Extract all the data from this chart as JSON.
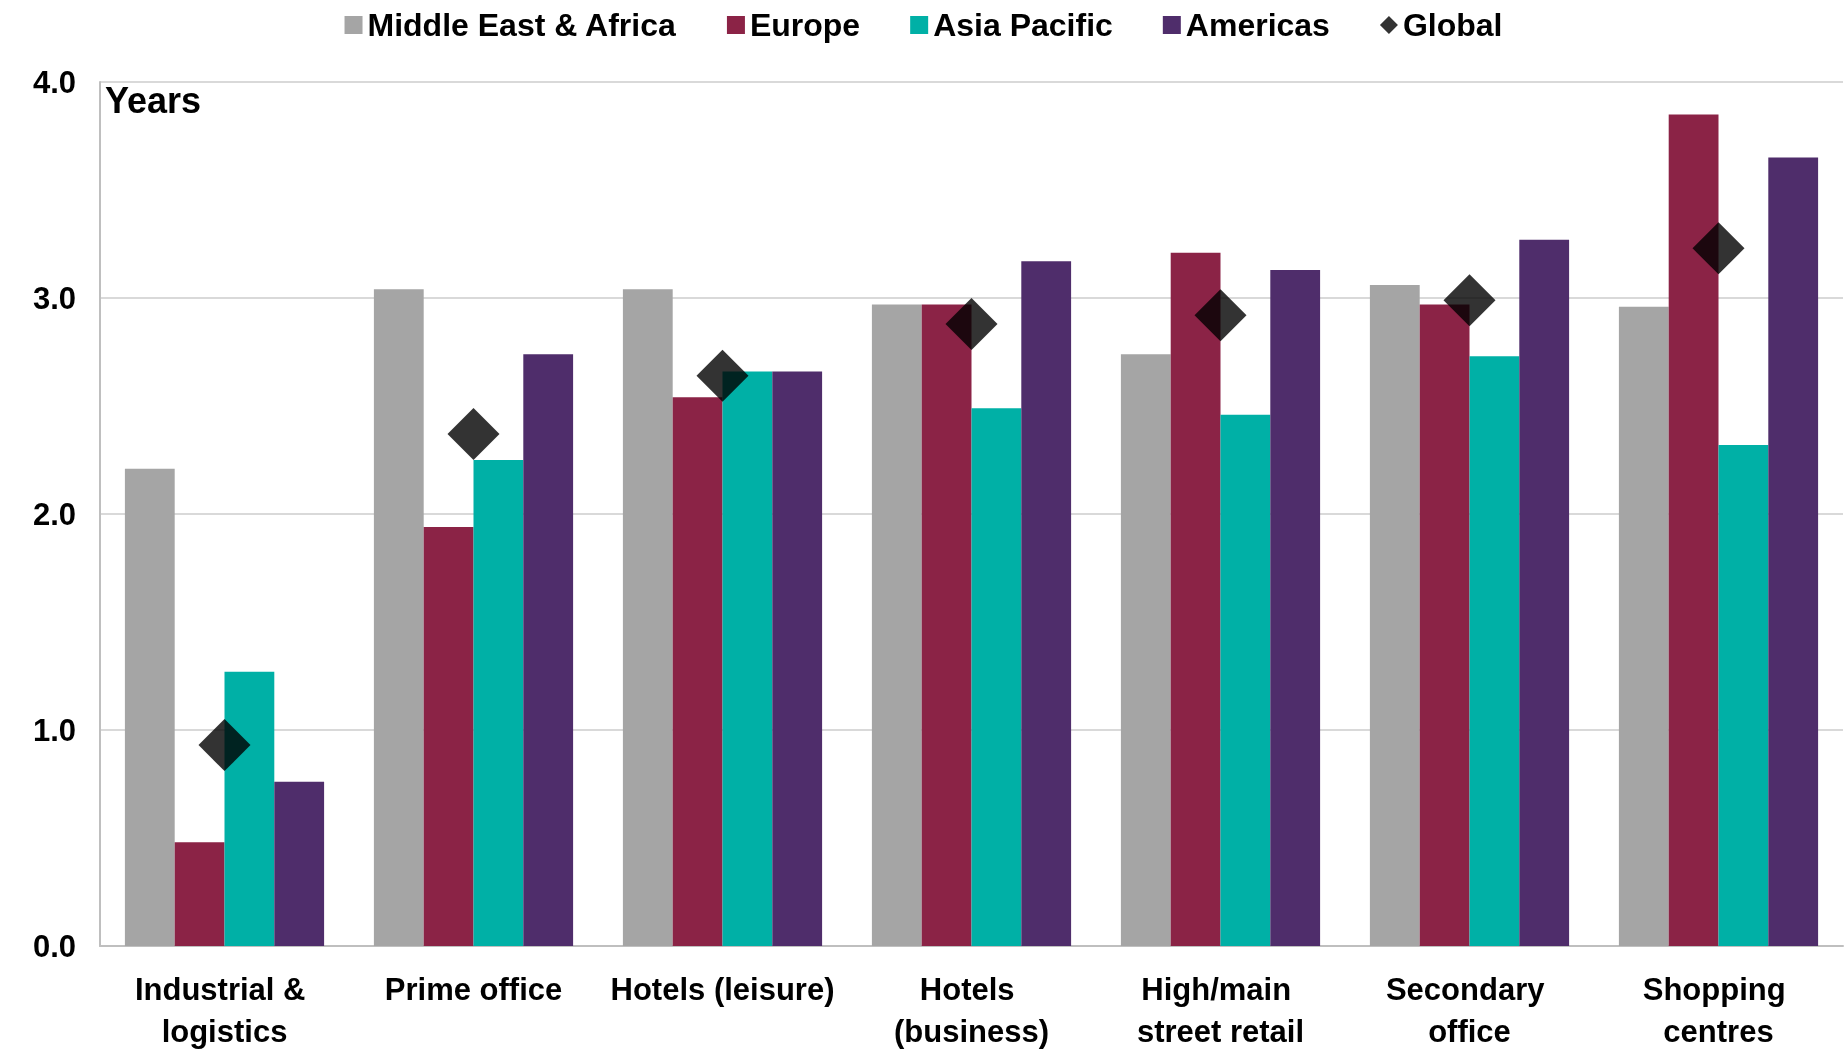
{
  "chart_data": {
    "type": "bar",
    "ylabel": "Years",
    "categories": [
      "Industrial & logistics",
      "Prime office",
      "Hotels (leisure)",
      "Hotels (business)",
      "High/main street retail",
      "Secondary office",
      "Shopping centres"
    ],
    "series": [
      {
        "name": "Middle East & Africa",
        "color": "#a5a5a5",
        "values": [
          2.21,
          3.04,
          3.04,
          2.97,
          2.74,
          3.06,
          2.96
        ]
      },
      {
        "name": "Europe",
        "color": "#8b2346",
        "values": [
          0.48,
          1.94,
          2.54,
          2.97,
          3.21,
          2.97,
          3.85
        ]
      },
      {
        "name": "Asia Pacific",
        "color": "#00b0a6",
        "values": [
          1.27,
          2.25,
          2.66,
          2.49,
          2.46,
          2.73,
          2.32
        ]
      },
      {
        "name": "Americas",
        "color": "#4f2d6b",
        "values": [
          0.76,
          2.74,
          2.66,
          3.17,
          3.13,
          3.27,
          3.65
        ]
      },
      {
        "name": "Global",
        "color": "#000000",
        "type": "scatter",
        "marker": "diamond",
        "values": [
          0.93,
          2.37,
          2.64,
          2.88,
          2.92,
          2.99,
          3.23
        ]
      }
    ],
    "ylim": [
      0,
      4
    ],
    "yticks": [
      {
        "value": 0,
        "label": "0.0"
      },
      {
        "value": 1,
        "label": "1.0"
      },
      {
        "value": 2,
        "label": "2.0"
      },
      {
        "value": 3,
        "label": "3.0"
      },
      {
        "value": 4,
        "label": "4.0"
      }
    ],
    "grid": "y",
    "legend": "top"
  }
}
